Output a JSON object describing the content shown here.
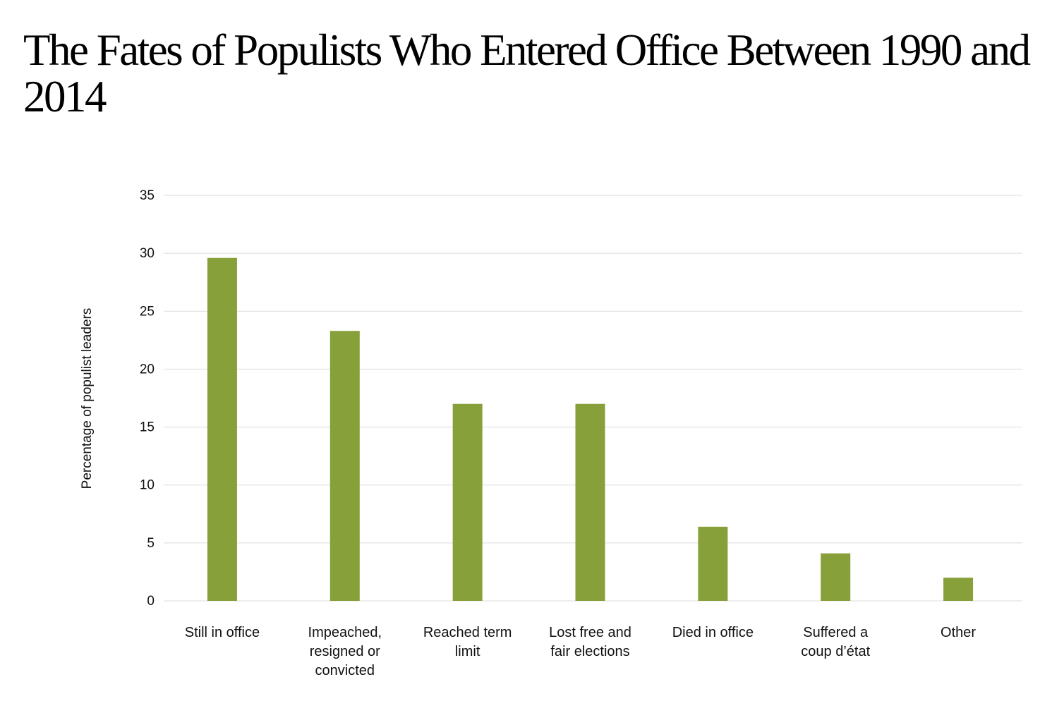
{
  "chart_data": {
    "type": "bar",
    "title": "The Fates of Populists Who Entered Office Between 1990 and 2014",
    "ylabel": "Percentage of populist leaders",
    "xlabel": "",
    "categories": [
      "Still in office",
      "Impeached, resigned or convicted",
      "Reached term limit",
      "Lost free and fair elections",
      "Died in office",
      "Suffered a coup d’état",
      "Other"
    ],
    "category_lines": [
      [
        "Still in office"
      ],
      [
        "Impeached,",
        "resigned or",
        "convicted"
      ],
      [
        "Reached term",
        "limit"
      ],
      [
        "Lost free and",
        "fair elections"
      ],
      [
        "Died in office"
      ],
      [
        "Suffered a",
        "coup d’état"
      ],
      [
        "Other"
      ]
    ],
    "values": [
      29.6,
      23.3,
      17.0,
      17.0,
      6.4,
      4.1,
      2.0
    ],
    "ylim": [
      0,
      35
    ],
    "yticks": [
      0,
      5,
      10,
      15,
      20,
      25,
      30,
      35
    ],
    "grid": true,
    "bar_color": "#87a03a",
    "grid_color": "#dcdcdc"
  }
}
